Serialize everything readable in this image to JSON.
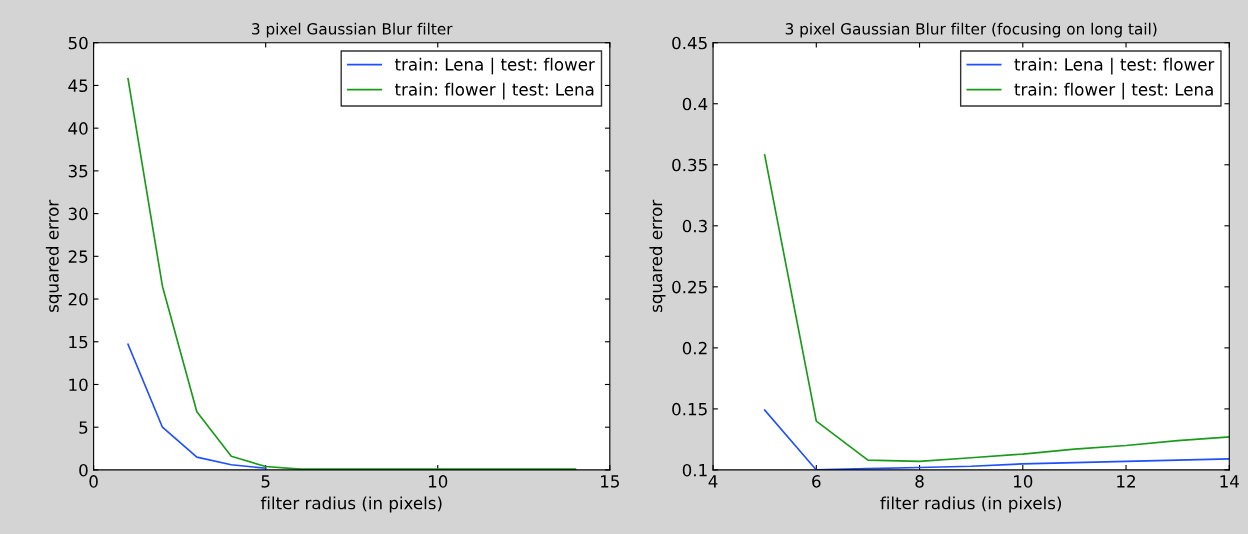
{
  "chart_data": [
    {
      "type": "line",
      "title": "3 pixel Gaussian Blur filter",
      "xlabel": "filter radius (in pixels)",
      "ylabel": "squared error",
      "x": [
        1,
        2,
        3,
        4,
        5,
        6,
        7,
        8,
        9,
        10,
        11,
        12,
        13,
        14
      ],
      "series": [
        {
          "name": "train: Lena | test: flower",
          "color": "#1f4fff",
          "values": [
            14.7,
            5.0,
            1.5,
            0.6,
            0.2,
            null,
            null,
            null,
            null,
            null,
            null,
            null,
            null,
            null
          ]
        },
        {
          "name": "train: flower | test: Lena",
          "color": "#1a9a1a",
          "values": [
            45.8,
            21.5,
            6.8,
            1.6,
            0.4,
            0.1,
            0.1,
            0.1,
            0.1,
            0.1,
            0.1,
            0.1,
            0.1,
            0.1
          ]
        }
      ],
      "xlim": [
        0,
        15
      ],
      "ylim": [
        0,
        50
      ],
      "xticks": [
        0,
        5,
        10,
        15
      ],
      "yticks": [
        0,
        5,
        10,
        15,
        20,
        25,
        30,
        35,
        40,
        45,
        50
      ],
      "grid": false,
      "legend": "top right"
    },
    {
      "type": "line",
      "title": "3 pixel Gaussian Blur filter (focusing on long tail)",
      "xlabel": "filter radius (in pixels)",
      "ylabel": "squared error",
      "x": [
        5,
        6,
        7,
        8,
        9,
        10,
        11,
        12,
        13,
        14
      ],
      "series": [
        {
          "name": "train: Lena | test: flower",
          "color": "#1f4fff",
          "values": [
            0.149,
            0.1,
            0.101,
            0.102,
            0.103,
            0.105,
            0.106,
            0.107,
            0.108,
            0.109
          ]
        },
        {
          "name": "train: flower | test: Lena",
          "color": "#1a9a1a",
          "values": [
            0.358,
            0.14,
            0.108,
            0.107,
            0.11,
            0.113,
            0.117,
            0.12,
            0.124,
            0.127
          ]
        }
      ],
      "xlim": [
        4,
        14
      ],
      "ylim": [
        0.1,
        0.45
      ],
      "xticks": [
        4,
        6,
        8,
        10,
        12,
        14
      ],
      "yticks": [
        0.1,
        0.15,
        0.2,
        0.25,
        0.3,
        0.35,
        0.4,
        0.45
      ],
      "grid": false,
      "legend": "top right"
    }
  ]
}
